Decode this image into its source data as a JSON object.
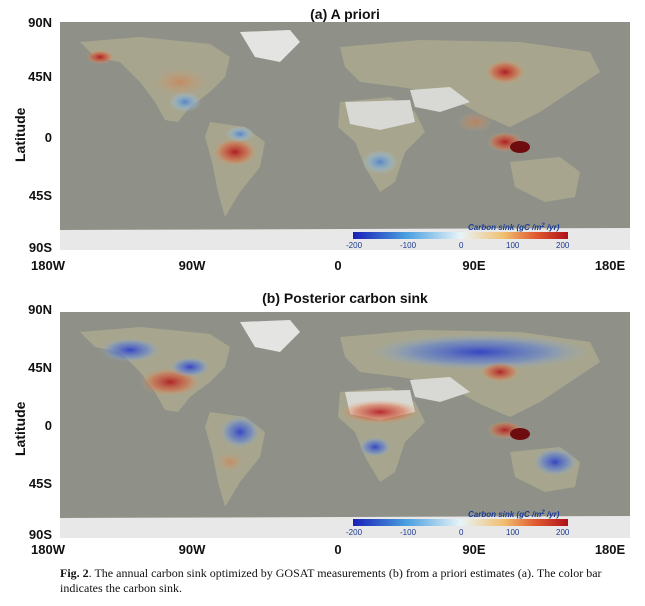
{
  "colors": {
    "ocean": "#8f9189",
    "land": "#a7a58e",
    "ice": "#e8e8e8",
    "sink_neg": "#3a4bd0",
    "sink_pos": "#c0141c",
    "cbar_text": "#1a3a8f"
  },
  "axes": {
    "ylabel": "Latitude",
    "lat_ticks": [
      "90N",
      "45N",
      "0",
      "45S",
      "90S"
    ],
    "lon_ticks": [
      "180W",
      "90W",
      "0",
      "90E",
      "180E"
    ]
  },
  "colorbar": {
    "title": "Carbon sink (gC /m",
    "title_sup": "2",
    "title_suffix": " /yr)",
    "ticks": [
      "-200",
      "-100",
      "0",
      "100",
      "200"
    ]
  },
  "panels": [
    {
      "title": "(a) A priori"
    },
    {
      "title": "(b) Posterior carbon sink"
    }
  ],
  "caption": {
    "label": "Fig. 2",
    "text": ". The annual carbon sink optimized by GOSAT measurements (b) from a priori estimates (a). The color bar indicates the carbon sink."
  }
}
